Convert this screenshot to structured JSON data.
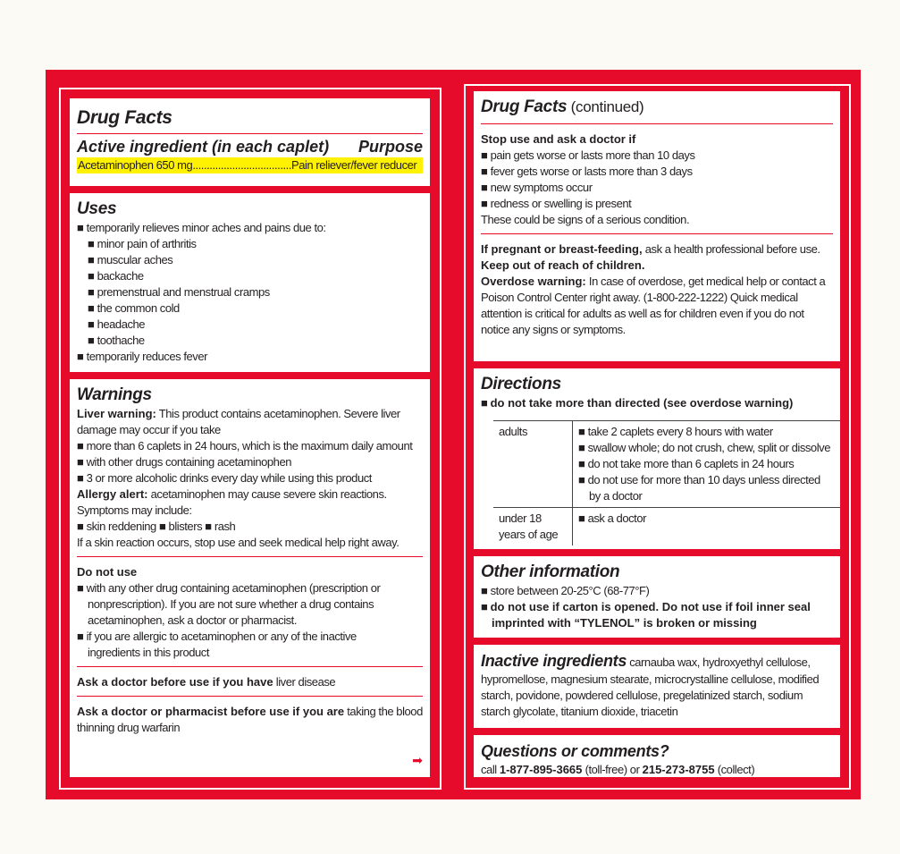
{
  "colors": {
    "border_red": "#e60b2b",
    "highlight": "#fff200"
  },
  "left": {
    "title": "Drug Facts",
    "active_heading": "Active ingredient (in each caplet)",
    "purpose_heading": "Purpose",
    "active_line": "Acetaminophen 650 mg...................................Pain reliever/fever reducer",
    "uses": [
      {
        "k": "h",
        "s": [
          {
            "t": "Uses"
          }
        ]
      },
      {
        "bul": 1,
        "s": [
          {
            "t": "temporarily relieves minor aches and pains due to:"
          }
        ]
      },
      {
        "bul": 1,
        "ind": 1,
        "s": [
          {
            "t": "minor pain of arthritis"
          }
        ]
      },
      {
        "bul": 1,
        "ind": 1,
        "s": [
          {
            "t": "muscular aches"
          }
        ]
      },
      {
        "bul": 1,
        "ind": 1,
        "s": [
          {
            "t": "backache"
          }
        ]
      },
      {
        "bul": 1,
        "ind": 1,
        "s": [
          {
            "t": "premenstrual and menstrual cramps"
          }
        ]
      },
      {
        "bul": 1,
        "ind": 1,
        "s": [
          {
            "t": "the common cold"
          }
        ]
      },
      {
        "bul": 1,
        "ind": 1,
        "s": [
          {
            "t": "headache"
          }
        ]
      },
      {
        "bul": 1,
        "ind": 1,
        "s": [
          {
            "t": "toothache"
          }
        ]
      },
      {
        "bul": 1,
        "s": [
          {
            "t": "temporarily reduces fever"
          }
        ]
      }
    ],
    "warnings": [
      {
        "k": "h",
        "s": [
          {
            "t": "Warnings"
          }
        ]
      },
      {
        "s": [
          {
            "t": "Liver warning:",
            "b": 1
          },
          {
            "t": " This product contains acetaminophen. Severe liver"
          }
        ]
      },
      {
        "s": [
          {
            "t": "damage may occur if you take"
          }
        ]
      },
      {
        "bul": 1,
        "s": [
          {
            "t": "more than 6 caplets in 24 hours, which is the maximum daily amount"
          }
        ]
      },
      {
        "bul": 1,
        "s": [
          {
            "t": "with other drugs containing acetaminophen"
          }
        ]
      },
      {
        "bul": 1,
        "s": [
          {
            "t": "3 or more alcoholic drinks every day while using this product"
          }
        ]
      },
      {
        "s": [
          {
            "t": "Allergy alert:",
            "b": 1
          },
          {
            "t": " acetaminophen may cause severe skin reactions."
          }
        ]
      },
      {
        "s": [
          {
            "t": "Symptoms may include:"
          }
        ]
      },
      {
        "s": [
          {
            "t": "■ skin reddening        ■ blisters        ■ rash"
          }
        ]
      },
      {
        "s": [
          {
            "t": "If a skin reaction occurs, stop use and seek medical help right away."
          }
        ]
      },
      {
        "k": "hr"
      },
      {
        "s": [
          {
            "t": "Do not use",
            "b": 1
          }
        ]
      },
      {
        "bul": 1,
        "s": [
          {
            "t": "with any other drug containing acetaminophen (prescription or"
          }
        ]
      },
      {
        "hang": 1,
        "s": [
          {
            "t": "nonprescription). If you are not sure whether a drug contains"
          }
        ]
      },
      {
        "hang": 1,
        "s": [
          {
            "t": "acetaminophen, ask a doctor or pharmacist."
          }
        ]
      },
      {
        "bul": 1,
        "s": [
          {
            "t": "if you are allergic to acetaminophen or any of the inactive"
          }
        ]
      },
      {
        "hang": 1,
        "s": [
          {
            "t": "ingredients in this product"
          }
        ]
      },
      {
        "k": "hr"
      },
      {
        "s": [
          {
            "t": "Ask a doctor before use if you have",
            "b": 1
          },
          {
            "t": " liver disease"
          }
        ]
      },
      {
        "k": "hr"
      },
      {
        "s": [
          {
            "t": "Ask a doctor or pharmacist before use if you are",
            "b": 1
          },
          {
            "t": " taking the blood"
          }
        ]
      },
      {
        "s": [
          {
            "t": "thinning drug warfarin"
          }
        ]
      }
    ],
    "continue_icon": "right-arrow-icon"
  },
  "right": {
    "stop": [
      {
        "k": "h",
        "s": [
          {
            "t": "Drug Facts"
          },
          {
            "t": " (continued)",
            "n": 1
          }
        ]
      },
      {
        "k": "hr"
      },
      {
        "s": [
          {
            "t": "Stop use and ask a doctor if",
            "b": 1
          }
        ]
      },
      {
        "bul": 1,
        "s": [
          {
            "t": "pain gets worse or lasts more than 10 days"
          }
        ]
      },
      {
        "bul": 1,
        "s": [
          {
            "t": "fever gets worse or lasts more than 3 days"
          }
        ]
      },
      {
        "bul": 1,
        "s": [
          {
            "t": "new symptoms occur"
          }
        ]
      },
      {
        "bul": 1,
        "s": [
          {
            "t": "redness or swelling is present"
          }
        ]
      },
      {
        "s": [
          {
            "t": "These could be signs of a serious condition."
          }
        ]
      },
      {
        "k": "hr"
      },
      {
        "s": [
          {
            "t": "If pregnant or breast-feeding,",
            "b": 1
          },
          {
            "t": " ask a health professional before use."
          }
        ]
      },
      {
        "s": [
          {
            "t": "Keep out of reach of children.",
            "b": 1
          }
        ]
      },
      {
        "s": [
          {
            "t": "Overdose warning:",
            "b": 1
          },
          {
            "t": " In case of overdose, get medical help or contact a"
          }
        ]
      },
      {
        "s": [
          {
            "t": "Poison Control Center right away. (1-800-222-1222) Quick medical"
          }
        ]
      },
      {
        "s": [
          {
            "t": "attention is critical for adults as well as for children even if you do not"
          }
        ]
      },
      {
        "s": [
          {
            "t": "notice any signs or symptoms."
          }
        ]
      }
    ],
    "directions": {
      "heading": "Directions",
      "lead": "do not take more than directed (see overdose warning)",
      "rows": [
        {
          "who": "adults",
          "items": [
            "take 2 caplets every 8 hours with water",
            "swallow whole; do not crush, chew, split or dissolve",
            "do not take more than 6 caplets in 24 hours",
            "do not use for more than 10 days unless directed\nby a doctor"
          ]
        },
        {
          "who": "under 18 years of age",
          "items": [
            "ask a doctor"
          ]
        }
      ]
    },
    "other": [
      {
        "k": "h",
        "s": [
          {
            "t": "Other information"
          }
        ]
      },
      {
        "bul": 1,
        "s": [
          {
            "t": "store between 20-25°C (68-77°F)"
          }
        ]
      },
      {
        "bul": 1,
        "s": [
          {
            "t": "do not use if carton is opened. Do not use if foil inner seal",
            "b": 1
          }
        ]
      },
      {
        "hang": 1,
        "s": [
          {
            "t": "imprinted with “TYLENOL” is broken or missing",
            "b": 1
          }
        ]
      }
    ],
    "inactive": {
      "heading": "Inactive ingredients",
      "first": " carnauba wax, hydroxyethyl cellulose,",
      "lines": [
        "hypromellose, magnesium stearate, microcrystalline cellulose, modified",
        "starch, povidone, powdered cellulose, pregelatinized starch, sodium",
        "starch glycolate, titanium dioxide, triacetin"
      ]
    },
    "questions": {
      "heading": "Questions or comments?",
      "segs": [
        {
          "t": "call "
        },
        {
          "t": "1-877-895-3665",
          "b": 1
        },
        {
          "t": " (toll-free) or "
        },
        {
          "t": "215-273-8755",
          "b": 1
        },
        {
          "t": " (collect)"
        }
      ]
    }
  }
}
